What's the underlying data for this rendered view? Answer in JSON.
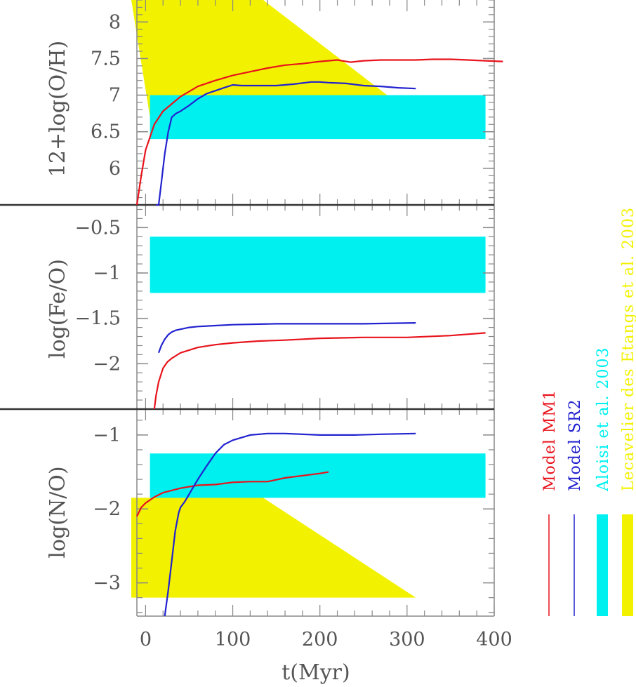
{
  "chart_data": {
    "type": "line",
    "x": {
      "label": "t(Myr)",
      "ticks": [
        0,
        100,
        200,
        300,
        400
      ],
      "range": [
        -10,
        400
      ]
    },
    "colors": {
      "mm1": "#e8131c",
      "sr2": "#2222d0",
      "aloisi": "#00f0f0",
      "lecavelier": "#f2f200"
    },
    "legend": {
      "placement": "right, vertical",
      "entries": [
        {
          "key": "mm1",
          "label": "Model MM1",
          "kind": "line"
        },
        {
          "key": "sr2",
          "label": "Model SR2",
          "kind": "line"
        },
        {
          "key": "aloisi",
          "label": "Aloisi et al. 2003",
          "kind": "band"
        },
        {
          "key": "lecavelier",
          "label": "Lecavelier des Etangs et al. 2003",
          "kind": "band"
        }
      ]
    },
    "panels": [
      {
        "id": "oh",
        "ylabel": "12+log(O/H)",
        "yrange": [
          5.5,
          8.3
        ],
        "yticks": [
          6,
          6.5,
          7,
          7.5,
          8
        ],
        "yticklabels": [
          "6",
          "6.5",
          "7",
          "7.5",
          "8"
        ],
        "bands": [
          {
            "key": "lecavelier",
            "shape": "parallelogram",
            "top": 8.3,
            "bottom": 6.7,
            "top_x": [
              -10,
              135
            ],
            "bottom_x": [
              5,
              310
            ]
          },
          {
            "key": "aloisi",
            "shape": "rect",
            "x": [
              5,
              390
            ],
            "y": [
              6.4,
              7.0
            ]
          }
        ],
        "series": [
          {
            "key": "mm1",
            "x": [
              -10,
              -5,
              0,
              10,
              20,
              40,
              60,
              80,
              100,
              120,
              140,
              160,
              180,
              200,
              220,
              235,
              250,
              270,
              290,
              310,
              330,
              350,
              370,
              390,
              410
            ],
            "y": [
              5.5,
              5.9,
              6.25,
              6.6,
              6.78,
              6.98,
              7.12,
              7.2,
              7.27,
              7.32,
              7.37,
              7.41,
              7.43,
              7.46,
              7.48,
              7.45,
              7.47,
              7.48,
              7.48,
              7.48,
              7.49,
              7.49,
              7.48,
              7.47,
              7.46
            ]
          },
          {
            "key": "sr2",
            "x": [
              12,
              15,
              18,
              22,
              26,
              30,
              35,
              40,
              50,
              60,
              70,
              80,
              90,
              100,
              110,
              130,
              150,
              170,
              190,
              200,
              210,
              230,
              250,
              270,
              290,
              310
            ],
            "y": [
              5.5,
              5.5,
              5.8,
              6.2,
              6.5,
              6.7,
              6.75,
              6.78,
              6.86,
              6.95,
              7.02,
              7.06,
              7.1,
              7.14,
              7.13,
              7.13,
              7.13,
              7.15,
              7.18,
              7.18,
              7.17,
              7.16,
              7.13,
              7.12,
              7.1,
              7.09
            ]
          }
        ]
      },
      {
        "id": "feo",
        "ylabel": "log(Fe/O)",
        "yrange": [
          -2.5,
          -0.25
        ],
        "yticks": [
          -2,
          -1.5,
          -1,
          -0.5
        ],
        "yticklabels": [
          "−2",
          "−1.5",
          "−1",
          "−0.5"
        ],
        "bands": [
          {
            "key": "aloisi",
            "shape": "rect",
            "x": [
              5,
              390
            ],
            "y": [
              -1.22,
              -0.6
            ]
          }
        ],
        "series": [
          {
            "key": "mm1",
            "x": [
              10,
              12,
              15,
              20,
              25,
              30,
              40,
              50,
              60,
              80,
              100,
              130,
              160,
              200,
              250,
              300,
              350,
              390
            ],
            "y": [
              -2.5,
              -2.35,
              -2.2,
              -2.05,
              -1.98,
              -1.94,
              -1.88,
              -1.85,
              -1.82,
              -1.79,
              -1.77,
              -1.75,
              -1.74,
              -1.72,
              -1.71,
              -1.71,
              -1.69,
              -1.66
            ]
          },
          {
            "key": "sr2",
            "x": [
              15,
              18,
              22,
              26,
              30,
              35,
              40,
              50,
              60,
              80,
              100,
              150,
              200,
              250,
              310
            ],
            "y": [
              -1.88,
              -1.8,
              -1.73,
              -1.68,
              -1.65,
              -1.63,
              -1.62,
              -1.6,
              -1.59,
              -1.58,
              -1.57,
              -1.56,
              -1.56,
              -1.56,
              -1.55
            ]
          }
        ]
      },
      {
        "id": "no",
        "ylabel": "log(N/O)",
        "yrange": [
          -3.45,
          -0.65
        ],
        "yticks": [
          -3,
          -2,
          -1
        ],
        "yticklabels": [
          "−3",
          "−2",
          "−1"
        ],
        "bands": [
          {
            "key": "lecavelier",
            "shape": "parallelogram",
            "top": -1.85,
            "bottom": -3.2,
            "top_x": [
              -10,
              135
            ],
            "bottom_x": [
              -10,
              310
            ]
          },
          {
            "key": "aloisi",
            "shape": "rect",
            "x": [
              5,
              390
            ],
            "y": [
              -1.85,
              -1.25
            ]
          }
        ],
        "series": [
          {
            "key": "mm1",
            "x": [
              -10,
              -5,
              0,
              10,
              20,
              40,
              60,
              80,
              100,
              120,
              140,
              160,
              180,
              200,
              210
            ],
            "y": [
              -2.1,
              -1.98,
              -1.92,
              -1.84,
              -1.78,
              -1.72,
              -1.68,
              -1.67,
              -1.64,
              -1.63,
              -1.63,
              -1.58,
              -1.55,
              -1.52,
              -1.5
            ]
          },
          {
            "key": "sr2",
            "x": [
              22,
              26,
              30,
              34,
              38,
              40,
              45,
              50,
              55,
              60,
              70,
              80,
              90,
              100,
              120,
              140,
              160,
              200,
              240,
              270,
              310
            ],
            "y": [
              -3.45,
              -3.1,
              -2.7,
              -2.3,
              -2.05,
              -1.98,
              -1.9,
              -1.8,
              -1.7,
              -1.6,
              -1.42,
              -1.25,
              -1.13,
              -1.07,
              -1.0,
              -0.98,
              -0.98,
              -1.0,
              -1.0,
              -0.99,
              -0.98
            ]
          }
        ]
      }
    ]
  }
}
